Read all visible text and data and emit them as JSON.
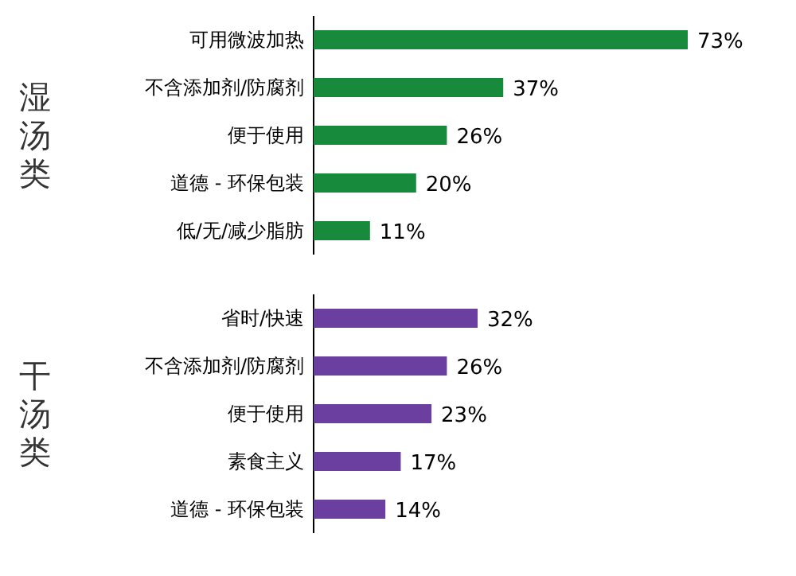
{
  "chart_data": [
    {
      "type": "bar",
      "orientation": "horizontal",
      "ylabel": "湿汤类",
      "categories": [
        "可用微波加热",
        "不含添加剂/防腐剂",
        "便于使用",
        "道德 - 环保包装",
        "低/无/减少脂肪"
      ],
      "values": [
        73,
        37,
        26,
        20,
        11
      ],
      "value_labels": [
        "73%",
        "37%",
        "26%",
        "20%",
        "11%"
      ],
      "color": "#178a3b",
      "tick_labels": "y"
    },
    {
      "type": "bar",
      "orientation": "horizontal",
      "ylabel": "干汤类",
      "categories": [
        "省时/快速",
        "不含添加剂/防腐剂",
        "便于使用",
        "素食主义",
        "道德 - 环保包装"
      ],
      "values": [
        32,
        26,
        23,
        17,
        14
      ],
      "value_labels": [
        "32%",
        "26%",
        "23%",
        "17%",
        "14%"
      ],
      "color": "#6b3fa0",
      "tick_labels": "y"
    }
  ]
}
